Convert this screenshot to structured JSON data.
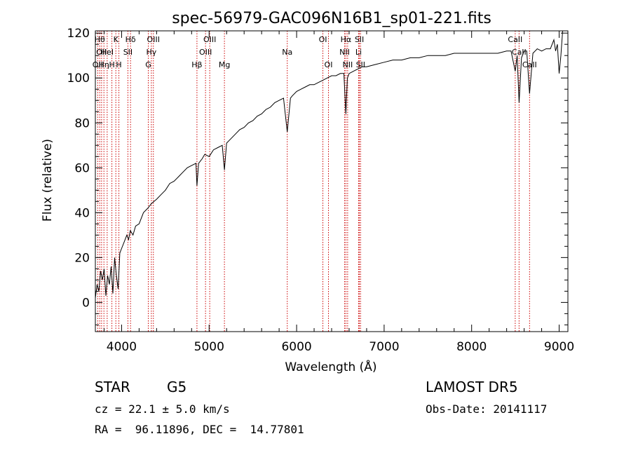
{
  "chart_data": {
    "type": "line",
    "title": "spec-56979-GAC096N16B1_sp01-221.fits",
    "xlabel": "Wavelength (Å)",
    "ylabel": "Flux (relative)",
    "xlim": [
      3700,
      9100
    ],
    "ylim": [
      -13,
      121
    ],
    "xticks": [
      4000,
      5000,
      6000,
      7000,
      8000,
      9000
    ],
    "yticks": [
      0,
      20,
      40,
      60,
      80,
      100,
      120
    ],
    "colors": {
      "line": "#000000",
      "marker": "#cc0000"
    },
    "series": [
      {
        "x": [
          3700,
          3720,
          3740,
          3760,
          3780,
          3800,
          3820,
          3840,
          3860,
          3880,
          3900,
          3920,
          3940,
          3960,
          3980,
          4000,
          4030,
          4060,
          4080,
          4100,
          4130,
          4160,
          4200,
          4250,
          4300,
          4340,
          4400,
          4450,
          4500,
          4550,
          4600,
          4650,
          4700,
          4750,
          4800,
          4850,
          4861,
          4880,
          4920,
          4950,
          5000,
          5050,
          5100,
          5150,
          5175,
          5200,
          5250,
          5300,
          5350,
          5400,
          5450,
          5500,
          5550,
          5600,
          5650,
          5700,
          5750,
          5800,
          5850,
          5893,
          5930,
          5950,
          6000,
          6050,
          6100,
          6150,
          6200,
          6250,
          6300,
          6350,
          6400,
          6450,
          6500,
          6540,
          6563,
          6580,
          6600,
          6650,
          6700,
          6750,
          6800,
          6900,
          7000,
          7100,
          7200,
          7300,
          7400,
          7500,
          7600,
          7700,
          7800,
          7900,
          8000,
          8100,
          8200,
          8300,
          8400,
          8450,
          8498,
          8520,
          8542,
          8570,
          8600,
          8630,
          8662,
          8700,
          8750,
          8800,
          8850,
          8900,
          8940,
          8960,
          8980,
          9000,
          9020,
          9040
        ],
        "values": [
          2,
          8,
          5,
          14,
          10,
          15,
          3,
          12,
          8,
          16,
          4,
          20,
          12,
          6,
          22,
          24,
          27,
          30,
          28,
          32,
          30,
          34,
          35,
          40,
          42,
          44,
          46,
          48,
          50,
          53,
          54,
          56,
          58,
          60,
          61,
          62,
          52,
          62,
          64,
          66,
          65,
          68,
          69,
          70,
          59,
          71,
          73,
          75,
          77,
          78,
          80,
          81,
          83,
          84,
          86,
          87,
          89,
          90,
          91,
          76,
          91,
          92,
          94,
          95,
          96,
          97,
          97,
          98,
          99,
          100,
          101,
          101,
          102,
          102,
          84,
          100,
          102,
          103,
          104,
          105,
          105,
          106,
          107,
          108,
          108,
          109,
          109,
          110,
          110,
          110,
          111,
          111,
          111,
          111,
          111,
          111,
          112,
          112,
          103,
          110,
          89,
          109,
          112,
          112,
          93,
          111,
          113,
          112,
          113,
          113,
          117,
          112,
          115,
          102,
          110,
          121
        ]
      }
    ],
    "lines": [
      {
        "x": 3727,
        "label": "OII",
        "row": 2
      },
      {
        "x": 3750,
        "label": "Hθ",
        "row": 0
      },
      {
        "x": 3771,
        "label": "OII",
        "row": 1
      },
      {
        "x": 3798,
        "label": "Hη",
        "row": 2
      },
      {
        "x": 3835,
        "label": "HeI",
        "row": 1
      },
      {
        "x": 3889,
        "label": "H",
        "row": 2
      },
      {
        "x": 3934,
        "label": "K",
        "row": 0
      },
      {
        "x": 3969,
        "label": "H",
        "row": 2
      },
      {
        "x": 4072,
        "label": "SII",
        "row": 1
      },
      {
        "x": 4102,
        "label": "Hδ",
        "row": 0
      },
      {
        "x": 4305,
        "label": "G",
        "row": 2
      },
      {
        "x": 4340,
        "label": "Hγ",
        "row": 1
      },
      {
        "x": 4363,
        "label": "OIII",
        "row": 0
      },
      {
        "x": 4861,
        "label": "Hβ",
        "row": 2
      },
      {
        "x": 4959,
        "label": "OIII",
        "row": 1
      },
      {
        "x": 5007,
        "label": "OIII",
        "row": 0
      },
      {
        "x": 5175,
        "label": "Mg",
        "row": 2
      },
      {
        "x": 5893,
        "label": "Na",
        "row": 1
      },
      {
        "x": 6300,
        "label": "OI",
        "row": 0
      },
      {
        "x": 6364,
        "label": "OI",
        "row": 2
      },
      {
        "x": 6548,
        "label": "NII",
        "row": 1
      },
      {
        "x": 6563,
        "label": "Hα",
        "row": 0
      },
      {
        "x": 6583,
        "label": "NII",
        "row": 2
      },
      {
        "x": 6708,
        "label": "Li",
        "row": 1
      },
      {
        "x": 6717,
        "label": "SII",
        "row": 0
      },
      {
        "x": 6731,
        "label": "SII",
        "row": 2
      },
      {
        "x": 8498,
        "label": "CaII",
        "row": 0
      },
      {
        "x": 8542,
        "label": "CaII",
        "row": 1
      },
      {
        "x": 8662,
        "label": "CaII",
        "row": 2
      }
    ]
  },
  "info": {
    "object_class": "STAR",
    "subclass": "G5",
    "survey": "LAMOST DR5",
    "redshift": "cz = 22.1 ± 5.0 km/s",
    "obs_date": "Obs-Date: 20141117",
    "coords": "RA =  96.11896, DEC =  14.77801"
  }
}
